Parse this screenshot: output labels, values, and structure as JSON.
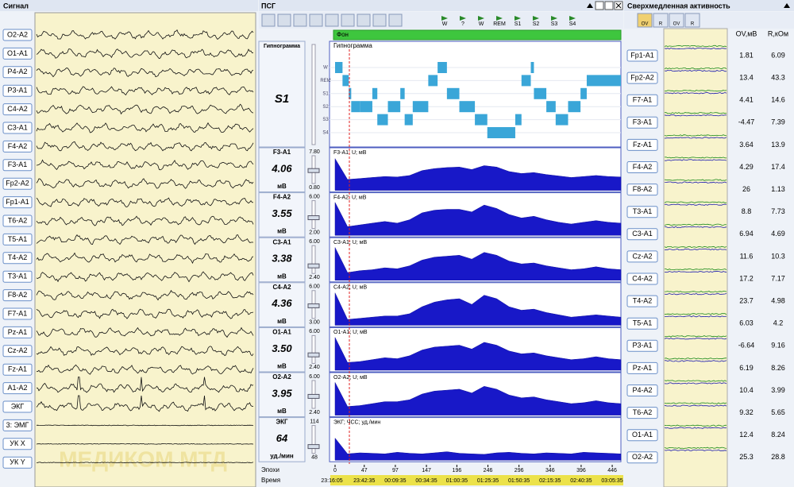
{
  "signal_panel": {
    "title": "Сигнал",
    "watermark": "МЕДИКОМ МТД",
    "channels": [
      "O2-A2",
      "O1-A1",
      "P4-A2",
      "P3-A1",
      "C4-A2",
      "C3-A1",
      "F4-A2",
      "F3-A1",
      "Fp2-A2",
      "Fp1-A1",
      "T6-A2",
      "T5-A1",
      "T4-A2",
      "T3-A1",
      "F8-A2",
      "F7-A1",
      "Pz-A1",
      "Cz-A2",
      "Fz-A1",
      "A1-A2",
      "ЭКГ",
      "3: ЭМГ",
      "УК X",
      "УК Y"
    ]
  },
  "psg_panel": {
    "title": "ПСГ",
    "toolbar_labels": [
      "W",
      "?",
      "W",
      "REM",
      "S1",
      "S2",
      "S3",
      "S4"
    ],
    "background_label": "Фон",
    "xlim": [
      0,
      460
    ],
    "hypnogram": {
      "side_title": "Гипнограмма",
      "current_stage": "S1",
      "title": "Гипнограмма",
      "stages": [
        "W",
        "REM",
        "S1",
        "S2",
        "S3",
        "S4"
      ],
      "cursor_epoch": 23,
      "segments": [
        {
          "start": 0,
          "end": 12,
          "stage": "W"
        },
        {
          "start": 12,
          "end": 22,
          "stage": "REM"
        },
        {
          "start": 22,
          "end": 26,
          "stage": "S1"
        },
        {
          "start": 26,
          "end": 40,
          "stage": "S2"
        },
        {
          "start": 40,
          "end": 60,
          "stage": "S2"
        },
        {
          "start": 60,
          "end": 68,
          "stage": "S1"
        },
        {
          "start": 68,
          "end": 85,
          "stage": "S3"
        },
        {
          "start": 85,
          "end": 105,
          "stage": "S2"
        },
        {
          "start": 105,
          "end": 112,
          "stage": "S1"
        },
        {
          "start": 112,
          "end": 125,
          "stage": "S3"
        },
        {
          "start": 125,
          "end": 150,
          "stage": "S2"
        },
        {
          "start": 150,
          "end": 165,
          "stage": "REM"
        },
        {
          "start": 165,
          "end": 180,
          "stage": "W"
        },
        {
          "start": 180,
          "end": 200,
          "stage": "S1"
        },
        {
          "start": 200,
          "end": 225,
          "stage": "S2"
        },
        {
          "start": 225,
          "end": 245,
          "stage": "S3"
        },
        {
          "start": 245,
          "end": 290,
          "stage": "S4"
        },
        {
          "start": 290,
          "end": 300,
          "stage": "S3"
        },
        {
          "start": 300,
          "end": 315,
          "stage": "REM"
        },
        {
          "start": 315,
          "end": 320,
          "stage": "W"
        },
        {
          "start": 320,
          "end": 340,
          "stage": "S1"
        },
        {
          "start": 340,
          "end": 355,
          "stage": "S2"
        },
        {
          "start": 355,
          "end": 375,
          "stage": "S3"
        },
        {
          "start": 375,
          "end": 395,
          "stage": "S2"
        },
        {
          "start": 395,
          "end": 405,
          "stage": "S1"
        },
        {
          "start": 405,
          "end": 460,
          "stage": "REM"
        }
      ]
    },
    "trend_epochs": [
      0,
      20,
      40,
      60,
      80,
      100,
      120,
      140,
      160,
      180,
      200,
      220,
      240,
      260,
      280,
      300,
      320,
      340,
      360,
      380,
      400,
      420,
      440,
      460
    ],
    "channels": [
      {
        "name": "F3-A1",
        "title": "F3-A1; U; мВ",
        "value": 4.06,
        "unit": "мВ",
        "ylim": [
          0.8,
          7.8
        ],
        "ylim_labels": [
          "0.80",
          "7.80"
        ],
        "values": [
          7.2,
          3.0,
          3.2,
          3.4,
          3.6,
          3.5,
          3.8,
          4.8,
          5.2,
          5.4,
          5.5,
          5.0,
          5.8,
          5.5,
          4.6,
          4.2,
          4.4,
          4.0,
          3.7,
          3.4,
          3.6,
          3.8,
          3.6,
          3.5
        ]
      },
      {
        "name": "F4-A2",
        "title": "F4-A2; U; мВ",
        "value": 3.55,
        "unit": "мВ",
        "ylim": [
          2.0,
          6.0
        ],
        "ylim_labels": [
          "2.00",
          "6.00"
        ],
        "values": [
          5.8,
          3.0,
          3.2,
          3.4,
          3.6,
          3.4,
          3.8,
          4.6,
          4.9,
          5.0,
          5.0,
          4.7,
          5.5,
          5.1,
          4.4,
          4.0,
          4.2,
          3.8,
          3.5,
          3.3,
          3.5,
          3.7,
          3.5,
          3.4
        ]
      },
      {
        "name": "C3-A1",
        "title": "C3-A1; U; мВ",
        "value": 3.38,
        "unit": "мВ",
        "ylim": [
          2.4,
          6.0
        ],
        "ylim_labels": [
          "2.40",
          "6.00"
        ],
        "values": [
          5.8,
          3.2,
          3.4,
          3.5,
          3.7,
          3.6,
          3.9,
          4.5,
          4.8,
          4.9,
          5.0,
          4.6,
          5.3,
          5.0,
          4.4,
          4.1,
          4.2,
          3.9,
          3.7,
          3.5,
          3.6,
          3.8,
          3.6,
          3.5
        ]
      },
      {
        "name": "C4-A2",
        "title": "C4-A2; U; мВ",
        "value": 4.36,
        "unit": "мВ",
        "ylim": [
          3.0,
          6.0
        ],
        "ylim_labels": [
          "3.00",
          "6.00"
        ],
        "values": [
          5.8,
          3.5,
          3.6,
          3.7,
          3.8,
          3.8,
          4.0,
          4.6,
          5.0,
          5.2,
          5.3,
          4.8,
          5.6,
          5.3,
          4.6,
          4.3,
          4.4,
          4.1,
          3.9,
          3.7,
          3.8,
          3.9,
          3.8,
          3.7
        ]
      },
      {
        "name": "O1-A1",
        "title": "O1-A1; U; мВ",
        "value": 3.5,
        "value_label": "3.50",
        "unit": "мВ",
        "ylim": [
          2.4,
          6.0
        ],
        "ylim_labels": [
          "2.40",
          "6.00"
        ],
        "values": [
          5.8,
          3.2,
          3.3,
          3.5,
          3.7,
          3.6,
          3.9,
          4.5,
          4.8,
          4.9,
          5.0,
          4.6,
          5.3,
          5.0,
          4.4,
          4.1,
          4.2,
          3.9,
          3.7,
          3.5,
          3.6,
          3.8,
          3.6,
          3.5
        ]
      },
      {
        "name": "O2-A2",
        "title": "O2-A2; U; мВ",
        "value": 3.95,
        "unit": "мВ",
        "ylim": [
          2.4,
          6.0
        ],
        "ylim_labels": [
          "2.40",
          "6.00"
        ],
        "values": [
          5.8,
          3.3,
          3.4,
          3.6,
          3.8,
          3.8,
          4.0,
          4.6,
          4.9,
          5.0,
          5.1,
          4.7,
          5.4,
          5.1,
          4.5,
          4.2,
          4.3,
          4.0,
          3.8,
          3.6,
          3.7,
          3.9,
          3.7,
          3.6
        ]
      },
      {
        "name": "ЭКГ",
        "title": "ЭКГ; ЧСС; уд./мин",
        "value": 64,
        "unit": "уд./мин",
        "ylim": [
          48,
          114
        ],
        "values": [
          90,
          60,
          62,
          61,
          60,
          63,
          61,
          60,
          62,
          64,
          61,
          60,
          59,
          62,
          63,
          61,
          60,
          62,
          61,
          60,
          63,
          62,
          61,
          60
        ]
      }
    ],
    "epochs_label": "Эпохи",
    "time_label": "Время",
    "epoch_ticks": [
      0,
      47,
      97,
      147,
      196,
      246,
      296,
      346,
      396,
      446
    ],
    "time_ticks": [
      "23:16:05",
      "23:42:35",
      "00:09:35",
      "00:34:35",
      "01:00:35",
      "01:25:35",
      "01:50:35",
      "02:15:35",
      "02:40:35",
      "03:05:35"
    ]
  },
  "infraslow_panel": {
    "title": "Сверхмедленная активность",
    "button_labels": [
      "OV",
      "R",
      "OV",
      "R"
    ],
    "columns": [
      "OV,мВ",
      "R,кОм"
    ],
    "rows": [
      {
        "name": "Fp1-A1",
        "ov": 1.81,
        "r": 6.09
      },
      {
        "name": "Fp2-A2",
        "ov": 13.4,
        "r": 43.3
      },
      {
        "name": "F7-A1",
        "ov": 4.41,
        "r": 14.6
      },
      {
        "name": "F3-A1",
        "ov": -4.47,
        "r": 7.39
      },
      {
        "name": "Fz-A1",
        "ov": 3.64,
        "r": 13.9
      },
      {
        "name": "F4-A2",
        "ov": 4.29,
        "r": 17.4
      },
      {
        "name": "F8-A2",
        "ov": 26,
        "r": 1.13
      },
      {
        "name": "T3-A1",
        "ov": 8.8,
        "r": 7.73
      },
      {
        "name": "C3-A1",
        "ov": 6.94,
        "r": 4.69
      },
      {
        "name": "Cz-A2",
        "ov": 11.6,
        "r": 10.3
      },
      {
        "name": "C4-A2",
        "ov": 17.2,
        "r": 7.17
      },
      {
        "name": "T4-A2",
        "ov": 23.7,
        "r": 4.98
      },
      {
        "name": "T5-A1",
        "ov": 6.03,
        "r": 4.2
      },
      {
        "name": "P3-A1",
        "ov": -6.64,
        "r": 9.16
      },
      {
        "name": "Pz-A1",
        "ov": 6.19,
        "r": 8.26
      },
      {
        "name": "P4-A2",
        "ov": 10.4,
        "r": 3.99
      },
      {
        "name": "T6-A2",
        "ov": 9.32,
        "r": 5.65
      },
      {
        "name": "O1-A1",
        "ov": 12.4,
        "r": 8.24
      },
      {
        "name": "O2-A2",
        "ov": 25.3,
        "r": 28.8
      }
    ]
  }
}
